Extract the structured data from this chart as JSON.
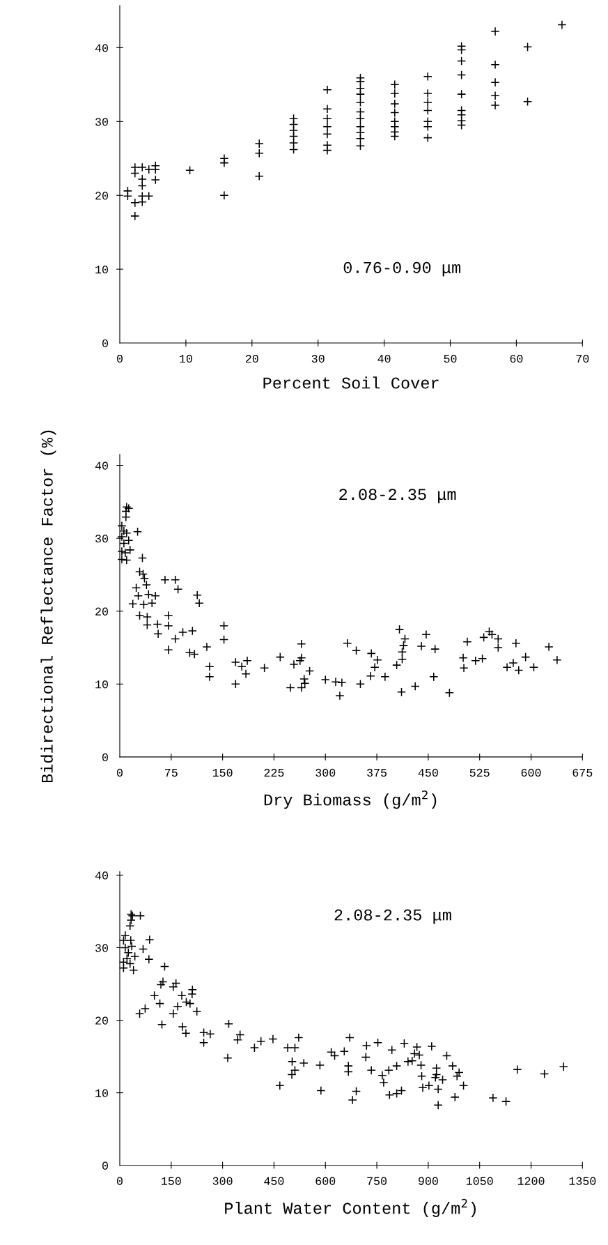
{
  "chart_data": [
    {
      "type": "scatter",
      "title": "0.76-0.90 μm",
      "xlabel": "Percent Soil Cover",
      "marker": "cross",
      "grid": false,
      "legend": false,
      "xlim": [
        0,
        70
      ],
      "xticks": [
        0,
        10,
        20,
        30,
        40,
        50,
        60,
        70
      ],
      "ylim": [
        0,
        45.7
      ],
      "yticks": [
        0,
        10,
        20,
        30,
        40
      ],
      "series": [
        {
          "color": "#000000",
          "x": [
            1.2,
            1.2,
            2.3,
            2.3,
            2.3,
            2.3,
            3.4,
            3.4,
            3.4,
            3.4,
            3.4,
            4.4,
            4.4,
            5.4,
            5.4,
            5.4,
            10.6,
            15.8,
            15.8,
            15.8,
            21.1,
            21.1,
            21.1,
            26.3,
            26.3,
            26.3,
            26.3,
            26.3,
            26.3,
            31.4,
            31.4,
            31.4,
            31.4,
            31.4,
            31.4,
            31.4,
            36.4,
            36.4,
            36.4,
            36.4,
            36.4,
            36.4,
            36.4,
            36.4,
            36.4,
            36.4,
            36.4,
            41.6,
            41.6,
            41.6,
            41.6,
            41.6,
            41.6,
            41.6,
            41.6,
            46.6,
            46.6,
            46.6,
            46.6,
            46.6,
            46.6,
            46.6,
            51.7,
            51.7,
            51.7,
            51.7,
            51.7,
            51.7,
            51.7,
            51.7,
            51.7,
            56.8,
            56.8,
            56.8,
            56.8,
            56.8,
            61.7,
            61.7,
            66.9
          ],
          "values": [
            20.6,
            19.9,
            23.8,
            23.0,
            19.0,
            17.2,
            23.8,
            22.2,
            21.3,
            19.9,
            19.1,
            23.5,
            19.9,
            24.0,
            23.5,
            22.1,
            23.4,
            25.0,
            24.4,
            20.0,
            27.0,
            25.7,
            22.6,
            30.4,
            29.6,
            28.8,
            28.0,
            27.1,
            26.2,
            34.3,
            31.7,
            30.4,
            29.3,
            28.3,
            26.8,
            26.1,
            35.9,
            35.4,
            34.5,
            33.7,
            32.6,
            31.3,
            30.4,
            29.3,
            28.5,
            27.7,
            26.7,
            35.0,
            33.8,
            32.4,
            31.2,
            30.0,
            29.3,
            28.6,
            28.0,
            36.1,
            33.8,
            32.6,
            31.5,
            30.0,
            29.3,
            27.8,
            40.2,
            39.7,
            38.2,
            36.3,
            33.7,
            31.5,
            30.9,
            30.1,
            29.5,
            42.2,
            37.7,
            35.3,
            33.5,
            32.2,
            40.1,
            32.7,
            43.1
          ]
        }
      ]
    },
    {
      "type": "scatter",
      "title": "2.08-2.35 μm",
      "xlabel": "Dry Biomass (g/m$^{2}$)",
      "ylabel": "Bidirectional Reflectance Factor (%)",
      "marker": "cross",
      "grid": false,
      "legend": false,
      "xlim": [
        0,
        675
      ],
      "xticks": [
        0,
        75,
        150,
        225,
        300,
        375,
        450,
        525,
        600,
        675
      ],
      "ylim": [
        0,
        41.5
      ],
      "yticks": [
        0,
        10,
        20,
        30,
        40
      ],
      "series": [
        {
          "color": "#000000",
          "x": [
            10,
            13,
            9,
            9,
            3,
            6,
            10,
            3,
            13,
            6,
            15,
            3,
            8,
            3,
            10,
            26,
            33,
            29,
            34,
            36,
            39,
            24,
            42,
            52,
            27,
            19,
            35,
            47,
            29,
            40,
            40,
            55,
            56,
            66,
            81,
            85,
            71,
            71,
            81,
            92,
            71,
            106,
            102,
            109,
            113,
            116,
            127,
            131,
            131,
            152,
            152,
            169,
            178,
            186,
            184,
            169,
            211,
            234,
            254,
            263,
            265,
            265,
            269,
            270,
            277,
            249,
            265,
            300,
            315,
            324,
            321,
            332,
            345,
            351,
            367,
            376,
            372,
            366,
            387,
            408,
            416,
            414,
            412,
            412,
            404,
            411,
            431,
            440,
            447,
            460,
            458,
            481,
            501,
            502,
            507,
            519,
            529,
            531,
            539,
            543,
            552,
            552,
            578,
            565,
            574,
            582,
            592,
            604,
            626,
            638
          ],
          "values": [
            34.3,
            34.1,
            33.7,
            32.9,
            31.7,
            31.0,
            30.7,
            30.2,
            29.7,
            29.3,
            28.4,
            28.2,
            28.0,
            27.1,
            27.0,
            30.9,
            27.3,
            25.4,
            25.1,
            24.5,
            23.6,
            23.2,
            22.3,
            22.1,
            22.1,
            21.0,
            20.9,
            21.1,
            19.4,
            19.2,
            18.1,
            18.2,
            16.9,
            24.3,
            24.3,
            23.0,
            19.4,
            18.0,
            16.2,
            17.1,
            14.7,
            17.3,
            14.3,
            14.1,
            22.2,
            21.1,
            15.1,
            12.4,
            11.0,
            18.0,
            16.1,
            13.0,
            12.4,
            13.2,
            11.4,
            10.0,
            12.2,
            13.7,
            12.7,
            13.2,
            13.6,
            15.5,
            10.7,
            10.1,
            11.8,
            9.5,
            9.5,
            10.6,
            10.3,
            10.2,
            8.4,
            15.6,
            14.6,
            10.0,
            14.2,
            13.3,
            12.3,
            11.1,
            11.0,
            17.5,
            16.2,
            15.3,
            14.4,
            13.4,
            12.6,
            8.9,
            9.7,
            15.2,
            16.8,
            14.8,
            11.0,
            8.8,
            13.6,
            12.2,
            15.8,
            13.2,
            13.5,
            16.4,
            17.2,
            16.8,
            16.2,
            15.0,
            15.6,
            12.3,
            12.9,
            11.9,
            13.7,
            12.3,
            15.1,
            13.3
          ]
        }
      ]
    },
    {
      "type": "scatter",
      "title": "2.08-2.35 μm",
      "xlabel": "Plant Water Content (g/m$^{2}$)",
      "marker": "cross",
      "grid": false,
      "legend": false,
      "xlim": [
        0,
        1350
      ],
      "xticks": [
        0,
        150,
        300,
        450,
        600,
        750,
        900,
        1050,
        1200,
        1350
      ],
      "ylim": [
        0,
        40.5
      ],
      "yticks": [
        0,
        10,
        20,
        30,
        40
      ],
      "series": [
        {
          "color": "#000000",
          "x": [
            33,
            37,
            60,
            33,
            30,
            16,
            11,
            32,
            87,
            35,
            16,
            68,
            25,
            44,
            85,
            21,
            11,
            30,
            11,
            40,
            131,
            126,
            120,
            164,
            156,
            101,
            117,
            181,
            212,
            211,
            205,
            194,
            169,
            74,
            58,
            156,
            225,
            123,
            183,
            193,
            245,
            264,
            245,
            318,
            315,
            351,
            344,
            393,
            412,
            447,
            467,
            490,
            511,
            522,
            503,
            537,
            511,
            502,
            584,
            587,
            617,
            627,
            655,
            671,
            667,
            667,
            690,
            679,
            720,
            718,
            753,
            734,
            766,
            770,
            785,
            794,
            808,
            787,
            808,
            822,
            830,
            841,
            853,
            867,
            860,
            874,
            879,
            881,
            884,
            902,
            910,
            924,
            924,
            921,
            929,
            929,
            942,
            954,
            971,
            984,
            990,
            1003,
            978,
            1089,
            1127,
            1160,
            1239,
            1295
          ],
          "values": [
            34.6,
            34.4,
            34.4,
            33.8,
            33.0,
            31.7,
            31.0,
            31.0,
            31.1,
            30.2,
            30.0,
            29.8,
            29.3,
            28.8,
            28.4,
            28.5,
            28.0,
            27.8,
            27.2,
            26.9,
            27.4,
            25.3,
            24.9,
            25.1,
            24.6,
            23.4,
            22.3,
            23.4,
            24.2,
            23.6,
            22.3,
            22.5,
            21.9,
            21.6,
            20.9,
            20.9,
            21.2,
            19.4,
            19.1,
            18.2,
            18.3,
            18.1,
            16.9,
            19.5,
            14.8,
            18.0,
            17.3,
            16.2,
            17.1,
            17.4,
            11.0,
            16.2,
            16.2,
            17.6,
            14.3,
            14.1,
            13.1,
            12.5,
            13.8,
            10.3,
            15.6,
            15.1,
            15.7,
            17.6,
            13.7,
            12.9,
            10.2,
            9.0,
            16.5,
            14.9,
            16.9,
            13.1,
            12.4,
            11.4,
            13.1,
            15.9,
            13.7,
            9.7,
            9.9,
            10.3,
            16.8,
            14.3,
            14.4,
            16.3,
            15.4,
            15.2,
            13.8,
            12.3,
            10.7,
            11.0,
            16.4,
            13.4,
            12.5,
            12.1,
            10.5,
            8.3,
            11.8,
            15.1,
            13.7,
            12.3,
            12.8,
            11.0,
            9.4,
            9.3,
            8.8,
            13.2,
            12.6,
            13.6
          ]
        }
      ]
    }
  ]
}
